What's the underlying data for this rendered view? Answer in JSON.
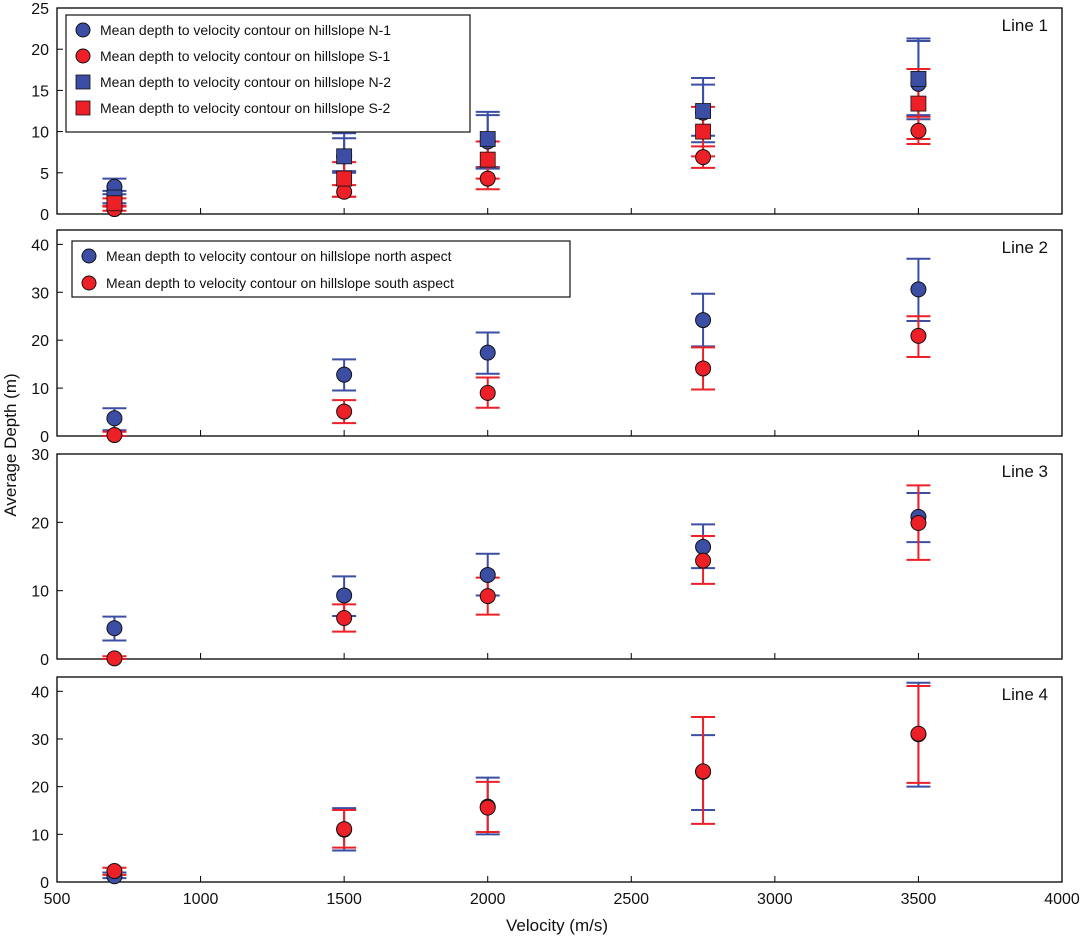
{
  "colors": {
    "north": "#3b4ea3",
    "south": "#ee2027",
    "axis": "#000000"
  },
  "xlabel": "Velocity (m/s)",
  "ylabel": "Average Depth (m)",
  "xlim": [
    500,
    4000
  ],
  "xticks": [
    "500",
    "1000",
    "1500",
    "2000",
    "2500",
    "3000",
    "3500",
    "4000"
  ],
  "chart_data": [
    {
      "type": "scatter",
      "title": "Line 1",
      "ylim": [
        0,
        25
      ],
      "yticks": [
        "0",
        "5",
        "10",
        "15",
        "20",
        "25"
      ],
      "legend": [
        {
          "label": "Mean depth to velocity contour on hillslope N-1",
          "marker": "circle",
          "color": "north"
        },
        {
          "label": "Mean depth to velocity contour on hillslope S-1",
          "marker": "circle",
          "color": "south"
        },
        {
          "label": "Mean depth to velocity contour on hillslope N-2",
          "marker": "square",
          "color": "north"
        },
        {
          "label": "Mean depth to velocity contour on hillslope S-2",
          "marker": "square",
          "color": "south"
        }
      ],
      "series": [
        {
          "name": "N-1",
          "marker": "circle",
          "color": "north",
          "x": [
            700,
            1500,
            2000,
            2750,
            3500
          ],
          "y": [
            3.3,
            7.0,
            8.8,
            12.3,
            15.8
          ],
          "lower": [
            2.4,
            5.2,
            5.7,
            9.5,
            11.5
          ],
          "upper": [
            4.3,
            9.2,
            12.0,
            15.7,
            21.0
          ]
        },
        {
          "name": "S-1",
          "marker": "circle",
          "color": "south",
          "x": [
            700,
            1500,
            2000,
            2750,
            3500
          ],
          "y": [
            0.6,
            2.7,
            4.3,
            6.9,
            10.1
          ],
          "lower": [
            0.4,
            2.1,
            3.0,
            5.6,
            8.5
          ],
          "upper": [
            1.0,
            3.5,
            5.6,
            8.2,
            11.8
          ]
        },
        {
          "name": "N-2",
          "marker": "square",
          "color": "north",
          "x": [
            700,
            1500,
            2000,
            2750,
            3500
          ],
          "y": [
            2.0,
            7.0,
            9.1,
            12.5,
            16.4
          ],
          "lower": [
            1.3,
            5.0,
            5.5,
            8.7,
            12.0
          ],
          "upper": [
            2.8,
            9.8,
            12.4,
            16.5,
            21.3
          ]
        },
        {
          "name": "S-2",
          "marker": "square",
          "color": "south",
          "x": [
            700,
            1500,
            2000,
            2750,
            3500
          ],
          "y": [
            1.3,
            4.3,
            6.6,
            10.0,
            13.4
          ],
          "lower": [
            0.9,
            2.1,
            4.3,
            7.0,
            9.1
          ],
          "upper": [
            1.9,
            6.3,
            8.8,
            13.0,
            17.6
          ]
        }
      ]
    },
    {
      "type": "scatter",
      "title": "Line 2",
      "ylim": [
        0,
        43
      ],
      "yticks": [
        "0",
        "10",
        "20",
        "30",
        "40"
      ],
      "legend": [
        {
          "label": "Mean depth to velocity contour on hillslope north aspect",
          "marker": "circle",
          "color": "north"
        },
        {
          "label": "Mean depth to velocity contour on hillslope south aspect",
          "marker": "circle",
          "color": "south"
        }
      ],
      "series": [
        {
          "name": "north",
          "marker": "circle",
          "color": "north",
          "x": [
            700,
            1500,
            2000,
            2750,
            3500
          ],
          "y": [
            3.7,
            12.8,
            17.4,
            24.2,
            30.6
          ],
          "lower": [
            1.2,
            9.5,
            13.0,
            18.7,
            24.0
          ],
          "upper": [
            5.8,
            16.0,
            21.6,
            29.7,
            37.0
          ]
        },
        {
          "name": "south",
          "marker": "circle",
          "color": "south",
          "x": [
            700,
            1500,
            2000,
            2750,
            3500
          ],
          "y": [
            0.2,
            5.1,
            9.0,
            14.1,
            20.9
          ],
          "lower": [
            0.0,
            2.7,
            5.9,
            9.7,
            16.5
          ],
          "upper": [
            0.9,
            7.5,
            12.2,
            18.5,
            25.0
          ]
        }
      ]
    },
    {
      "type": "scatter",
      "title": "Line 3",
      "ylim": [
        0,
        30
      ],
      "yticks": [
        "0",
        "10",
        "20",
        "30"
      ],
      "legend": [],
      "series": [
        {
          "name": "north",
          "marker": "circle",
          "color": "north",
          "x": [
            700,
            1500,
            2000,
            2750,
            3500
          ],
          "y": [
            4.5,
            9.3,
            12.3,
            16.4,
            20.8
          ],
          "lower": [
            2.7,
            6.3,
            9.3,
            13.3,
            17.1
          ],
          "upper": [
            6.2,
            12.1,
            15.4,
            19.7,
            24.3
          ]
        },
        {
          "name": "south",
          "marker": "circle",
          "color": "south",
          "x": [
            700,
            1500,
            2000,
            2750,
            3500
          ],
          "y": [
            0.1,
            6.0,
            9.2,
            14.4,
            19.9
          ],
          "lower": [
            0.0,
            4.0,
            6.5,
            11.0,
            14.5
          ],
          "upper": [
            0.4,
            8.0,
            11.9,
            18.0,
            25.4
          ]
        }
      ]
    },
    {
      "type": "scatter",
      "title": "Line 4",
      "ylim": [
        0,
        43
      ],
      "yticks": [
        "0",
        "10",
        "20",
        "30",
        "40"
      ],
      "legend": [],
      "series": [
        {
          "name": "north",
          "marker": "circle",
          "color": "north",
          "x": [
            700,
            1500,
            2000,
            2750,
            3500
          ],
          "y": [
            1.2,
            11.0,
            15.8,
            23.1,
            31.0
          ],
          "lower": [
            0.8,
            6.6,
            10.0,
            15.1,
            20.0
          ],
          "upper": [
            2.0,
            15.5,
            21.9,
            30.8,
            41.8
          ]
        },
        {
          "name": "south",
          "marker": "circle",
          "color": "south",
          "x": [
            700,
            1500,
            2000,
            2750,
            3500
          ],
          "y": [
            2.3,
            11.1,
            15.6,
            23.2,
            31.1
          ],
          "lower": [
            1.5,
            7.2,
            10.5,
            12.2,
            20.8
          ],
          "upper": [
            3.0,
            15.1,
            21.0,
            34.6,
            41.1
          ]
        }
      ]
    }
  ]
}
